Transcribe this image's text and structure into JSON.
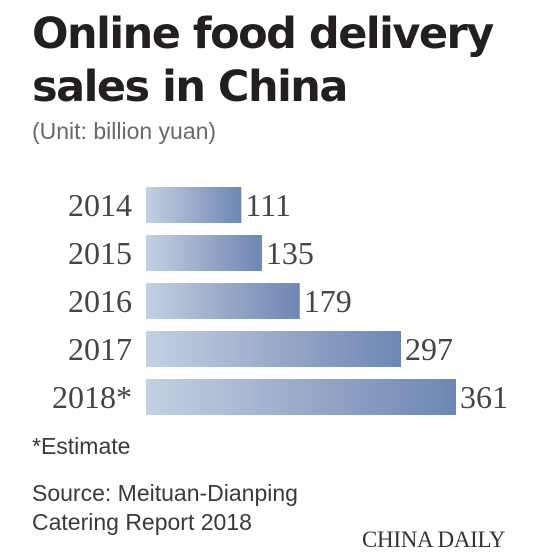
{
  "header": {
    "title_line1": "Online food delivery",
    "title_line2": "sales in China",
    "unit": "(Unit: billion yuan)"
  },
  "chart_data": {
    "type": "bar",
    "orientation": "horizontal",
    "categories": [
      "2014",
      "2015",
      "2016",
      "2017",
      "2018*"
    ],
    "values": [
      111,
      135,
      179,
      297,
      361
    ],
    "title": "Online food delivery sales in China",
    "unit": "billion yuan",
    "xlim": [
      0,
      361
    ],
    "grid": false,
    "bar_gradient": [
      "#c5d0e2",
      "#6e86b3"
    ]
  },
  "footnote": "*Estimate",
  "source": "Source: Meituan-Dianping Catering Report 2018",
  "credit": "CHINA DAILY"
}
